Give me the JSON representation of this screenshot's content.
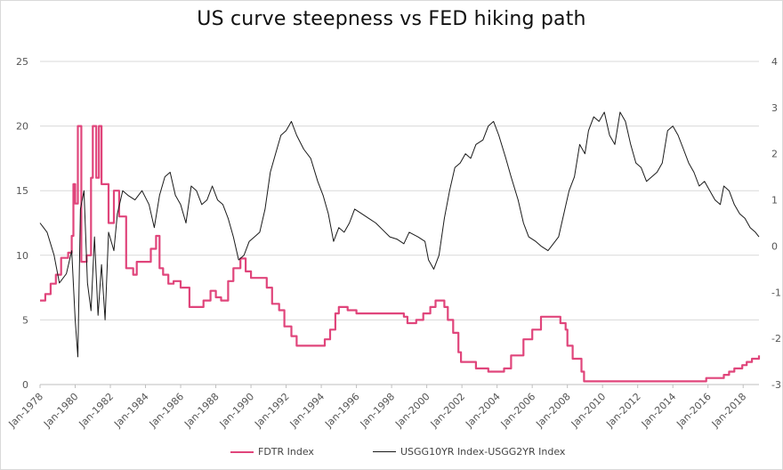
{
  "chart_data": {
    "type": "line",
    "title": "US curve steepness vs FED hiking path",
    "grid": true,
    "legend_placement": "bottom",
    "x_ticks": [
      "Jan-1978",
      "Jan-1980",
      "Jan-1982",
      "Jan-1984",
      "Jan-1986",
      "Jan-1988",
      "Jan-1990",
      "Jan-1992",
      "Jan-1994",
      "Jan-1996",
      "Jan-1998",
      "Jan-2000",
      "Jan-2002",
      "Jan-2004",
      "Jan-2006",
      "Jan-2008",
      "Jan-2010",
      "Jan-2012",
      "Jan-2014",
      "Jan-2016",
      "Jan-2018"
    ],
    "xlim": [
      1978.0,
      2018.9
    ],
    "y_left": {
      "ylim": [
        0,
        25
      ],
      "ticks": [
        "0",
        "5",
        "10",
        "15",
        "20",
        "25"
      ]
    },
    "y_right": {
      "ylim": [
        -3,
        4
      ],
      "ticks": [
        "-3",
        "-2",
        "-1",
        "0",
        "1",
        "2",
        "3",
        "4"
      ]
    },
    "series": [
      {
        "name": "FDTR Index",
        "axis": "left",
        "color": "#e0457b",
        "step": true,
        "points": [
          [
            1978.0,
            6.5
          ],
          [
            1978.3,
            7.0
          ],
          [
            1978.6,
            7.8
          ],
          [
            1978.9,
            8.5
          ],
          [
            1979.2,
            9.8
          ],
          [
            1979.6,
            10.2
          ],
          [
            1979.8,
            11.5
          ],
          [
            1979.9,
            15.5
          ],
          [
            1980.0,
            14.0
          ],
          [
            1980.15,
            20.0
          ],
          [
            1980.35,
            9.5
          ],
          [
            1980.65,
            10.0
          ],
          [
            1980.9,
            16.0
          ],
          [
            1981.0,
            20.0
          ],
          [
            1981.2,
            16.0
          ],
          [
            1981.35,
            20.0
          ],
          [
            1981.5,
            15.5
          ],
          [
            1981.9,
            12.5
          ],
          [
            1982.2,
            15.0
          ],
          [
            1982.5,
            13.0
          ],
          [
            1982.9,
            9.0
          ],
          [
            1983.3,
            8.5
          ],
          [
            1983.5,
            9.5
          ],
          [
            1984.0,
            9.5
          ],
          [
            1984.3,
            10.5
          ],
          [
            1984.6,
            11.5
          ],
          [
            1984.8,
            9.0
          ],
          [
            1985.0,
            8.5
          ],
          [
            1985.3,
            7.8
          ],
          [
            1985.6,
            8.0
          ],
          [
            1986.0,
            7.5
          ],
          [
            1986.5,
            6.0
          ],
          [
            1986.9,
            6.0
          ],
          [
            1987.3,
            6.5
          ],
          [
            1987.7,
            7.25
          ],
          [
            1988.0,
            6.75
          ],
          [
            1988.3,
            6.5
          ],
          [
            1988.7,
            8.0
          ],
          [
            1989.0,
            9.0
          ],
          [
            1989.4,
            9.75
          ],
          [
            1989.7,
            8.75
          ],
          [
            1990.0,
            8.25
          ],
          [
            1990.9,
            7.5
          ],
          [
            1991.2,
            6.25
          ],
          [
            1991.6,
            5.75
          ],
          [
            1991.9,
            4.5
          ],
          [
            1992.3,
            3.75
          ],
          [
            1992.6,
            3.0
          ],
          [
            1993.0,
            3.0
          ],
          [
            1994.0,
            3.0
          ],
          [
            1994.2,
            3.5
          ],
          [
            1994.5,
            4.25
          ],
          [
            1994.8,
            5.5
          ],
          [
            1995.0,
            6.0
          ],
          [
            1995.5,
            5.75
          ],
          [
            1996.0,
            5.5
          ],
          [
            1997.2,
            5.5
          ],
          [
            1997.4,
            5.5
          ],
          [
            1998.7,
            5.25
          ],
          [
            1998.9,
            4.75
          ],
          [
            1999.4,
            5.0
          ],
          [
            1999.8,
            5.5
          ],
          [
            2000.2,
            6.0
          ],
          [
            2000.5,
            6.5
          ],
          [
            2001.0,
            6.0
          ],
          [
            2001.2,
            5.0
          ],
          [
            2001.5,
            4.0
          ],
          [
            2001.8,
            2.5
          ],
          [
            2001.95,
            1.75
          ],
          [
            2002.8,
            1.25
          ],
          [
            2003.5,
            1.0
          ],
          [
            2004.4,
            1.25
          ],
          [
            2004.8,
            2.25
          ],
          [
            2005.5,
            3.5
          ],
          [
            2006.0,
            4.25
          ],
          [
            2006.5,
            5.25
          ],
          [
            2007.6,
            4.75
          ],
          [
            2007.9,
            4.25
          ],
          [
            2008.0,
            3.0
          ],
          [
            2008.3,
            2.0
          ],
          [
            2008.8,
            1.0
          ],
          [
            2008.95,
            0.25
          ],
          [
            2015.9,
            0.5
          ],
          [
            2016.9,
            0.75
          ],
          [
            2017.2,
            1.0
          ],
          [
            2017.5,
            1.25
          ],
          [
            2017.95,
            1.5
          ],
          [
            2018.2,
            1.75
          ],
          [
            2018.5,
            2.0
          ],
          [
            2018.9,
            2.25
          ]
        ]
      },
      {
        "name": "USGG10YR Index-USGG2YR Index",
        "axis": "right",
        "color": "#1a1a1a",
        "step": false,
        "points": [
          [
            1978.0,
            0.5
          ],
          [
            1978.4,
            0.3
          ],
          [
            1978.8,
            -0.2
          ],
          [
            1979.1,
            -0.8
          ],
          [
            1979.5,
            -0.6
          ],
          [
            1979.8,
            -0.1
          ],
          [
            1980.0,
            -1.6
          ],
          [
            1980.15,
            -2.4
          ],
          [
            1980.3,
            0.8
          ],
          [
            1980.5,
            1.2
          ],
          [
            1980.7,
            -0.8
          ],
          [
            1980.9,
            -1.4
          ],
          [
            1981.1,
            0.2
          ],
          [
            1981.3,
            -1.5
          ],
          [
            1981.5,
            -0.4
          ],
          [
            1981.7,
            -1.6
          ],
          [
            1981.9,
            0.3
          ],
          [
            1982.2,
            -0.1
          ],
          [
            1982.4,
            0.7
          ],
          [
            1982.7,
            1.2
          ],
          [
            1983.0,
            1.1
          ],
          [
            1983.4,
            1.0
          ],
          [
            1983.8,
            1.2
          ],
          [
            1984.2,
            0.9
          ],
          [
            1984.5,
            0.4
          ],
          [
            1984.8,
            1.1
          ],
          [
            1985.1,
            1.5
          ],
          [
            1985.4,
            1.6
          ],
          [
            1985.7,
            1.1
          ],
          [
            1986.0,
            0.9
          ],
          [
            1986.3,
            0.5
          ],
          [
            1986.6,
            1.3
          ],
          [
            1986.9,
            1.2
          ],
          [
            1987.2,
            0.9
          ],
          [
            1987.5,
            1.0
          ],
          [
            1987.8,
            1.3
          ],
          [
            1988.1,
            1.0
          ],
          [
            1988.4,
            0.9
          ],
          [
            1988.7,
            0.6
          ],
          [
            1989.0,
            0.2
          ],
          [
            1989.3,
            -0.3
          ],
          [
            1989.6,
            -0.2
          ],
          [
            1989.9,
            0.1
          ],
          [
            1990.2,
            0.2
          ],
          [
            1990.5,
            0.3
          ],
          [
            1990.8,
            0.8
          ],
          [
            1991.1,
            1.6
          ],
          [
            1991.4,
            2.0
          ],
          [
            1991.7,
            2.4
          ],
          [
            1992.0,
            2.5
          ],
          [
            1992.3,
            2.7
          ],
          [
            1992.6,
            2.4
          ],
          [
            1993.0,
            2.1
          ],
          [
            1993.4,
            1.9
          ],
          [
            1993.8,
            1.4
          ],
          [
            1994.1,
            1.1
          ],
          [
            1994.4,
            0.7
          ],
          [
            1994.7,
            0.1
          ],
          [
            1995.0,
            0.4
          ],
          [
            1995.3,
            0.3
          ],
          [
            1995.6,
            0.5
          ],
          [
            1995.9,
            0.8
          ],
          [
            1996.3,
            0.7
          ],
          [
            1996.7,
            0.6
          ],
          [
            1997.1,
            0.5
          ],
          [
            1997.5,
            0.35
          ],
          [
            1997.9,
            0.2
          ],
          [
            1998.3,
            0.15
          ],
          [
            1998.7,
            0.05
          ],
          [
            1999.0,
            0.3
          ],
          [
            1999.5,
            0.2
          ],
          [
            1999.9,
            0.1
          ],
          [
            2000.1,
            -0.3
          ],
          [
            2000.4,
            -0.5
          ],
          [
            2000.7,
            -0.2
          ],
          [
            2001.0,
            0.6
          ],
          [
            2001.3,
            1.2
          ],
          [
            2001.6,
            1.7
          ],
          [
            2001.9,
            1.8
          ],
          [
            2002.2,
            2.0
          ],
          [
            2002.5,
            1.9
          ],
          [
            2002.8,
            2.2
          ],
          [
            2003.2,
            2.3
          ],
          [
            2003.5,
            2.6
          ],
          [
            2003.8,
            2.7
          ],
          [
            2004.1,
            2.4
          ],
          [
            2004.5,
            1.9
          ],
          [
            2004.8,
            1.5
          ],
          [
            2005.2,
            1.0
          ],
          [
            2005.5,
            0.5
          ],
          [
            2005.8,
            0.2
          ],
          [
            2006.2,
            0.1
          ],
          [
            2006.5,
            0.0
          ],
          [
            2006.9,
            -0.1
          ],
          [
            2007.2,
            0.05
          ],
          [
            2007.5,
            0.2
          ],
          [
            2007.8,
            0.7
          ],
          [
            2008.1,
            1.2
          ],
          [
            2008.4,
            1.5
          ],
          [
            2008.7,
            2.2
          ],
          [
            2009.0,
            2.0
          ],
          [
            2009.2,
            2.5
          ],
          [
            2009.5,
            2.8
          ],
          [
            2009.8,
            2.7
          ],
          [
            2010.1,
            2.9
          ],
          [
            2010.4,
            2.4
          ],
          [
            2010.7,
            2.2
          ],
          [
            2011.0,
            2.9
          ],
          [
            2011.3,
            2.7
          ],
          [
            2011.6,
            2.2
          ],
          [
            2011.9,
            1.8
          ],
          [
            2012.2,
            1.7
          ],
          [
            2012.5,
            1.4
          ],
          [
            2012.8,
            1.5
          ],
          [
            2013.1,
            1.6
          ],
          [
            2013.4,
            1.8
          ],
          [
            2013.7,
            2.5
          ],
          [
            2014.0,
            2.6
          ],
          [
            2014.3,
            2.4
          ],
          [
            2014.6,
            2.1
          ],
          [
            2014.9,
            1.8
          ],
          [
            2015.2,
            1.6
          ],
          [
            2015.5,
            1.3
          ],
          [
            2015.8,
            1.4
          ],
          [
            2016.1,
            1.2
          ],
          [
            2016.4,
            1.0
          ],
          [
            2016.7,
            0.9
          ],
          [
            2016.9,
            1.3
          ],
          [
            2017.2,
            1.2
          ],
          [
            2017.5,
            0.9
          ],
          [
            2017.8,
            0.7
          ],
          [
            2018.1,
            0.6
          ],
          [
            2018.4,
            0.4
          ],
          [
            2018.7,
            0.3
          ],
          [
            2018.9,
            0.2
          ]
        ]
      }
    ]
  }
}
